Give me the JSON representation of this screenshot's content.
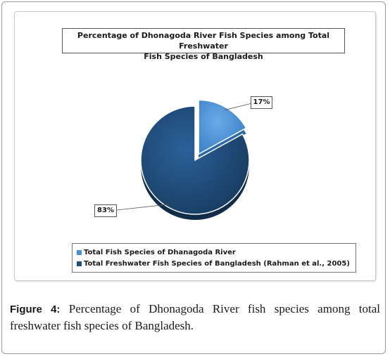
{
  "chart_data": {
    "type": "pie",
    "title": "Percentage of Dhonagoda River Fish Species among Total Freshwater Fish Species of Bangladesh",
    "title_lines": [
      "Percentage of Dhonagoda River Fish Species among Total Freshwater",
      "Fish Species of Bangladesh"
    ],
    "slices": [
      {
        "name": "Total Fish Species of Dhanagoda River",
        "value": 17,
        "label": "17%",
        "color": "#4a90d9",
        "exploded": true
      },
      {
        "name": "Total Freshwater Fish Species of Bangladesh (Rahman et al., 2005)",
        "value": 83,
        "label": "83%",
        "color": "#1f4e79",
        "exploded": false
      }
    ],
    "legend_position": "bottom",
    "style": "3d"
  },
  "caption": {
    "label": "Figure 4:",
    "text": " Percentage of Dhonagoda River fish species among total freshwater fish species of Bangladesh."
  }
}
